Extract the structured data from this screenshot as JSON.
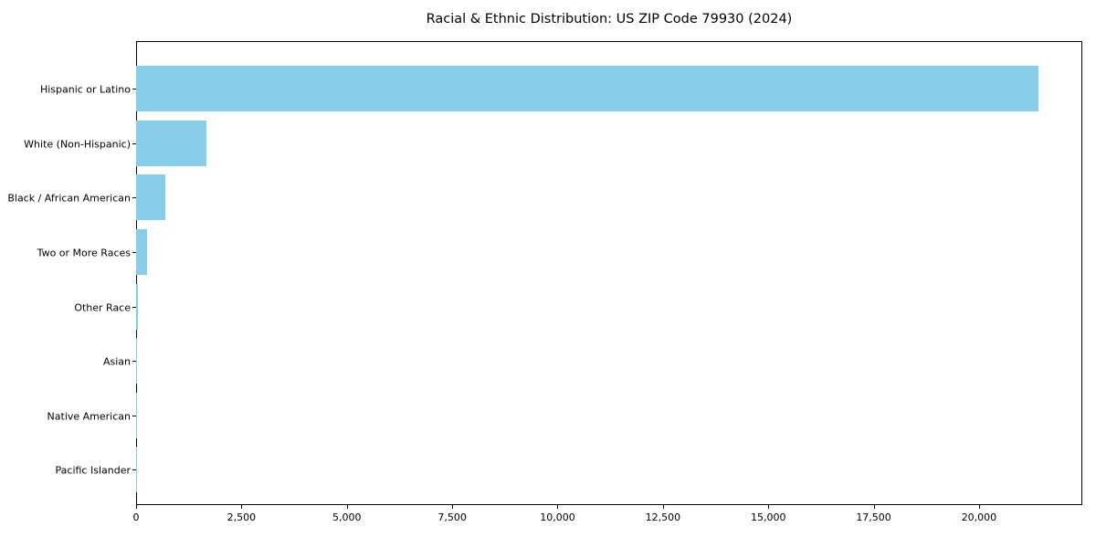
{
  "chart_data": {
    "type": "bar",
    "orientation": "horizontal",
    "title": "Racial & Ethnic Distribution: US ZIP Code 79930 (2024)",
    "categories": [
      "Hispanic or Latino",
      "White (Non-Hispanic)",
      "Black / African American",
      "Two or More Races",
      "Other Race",
      "Asian",
      "Native American",
      "Pacific Islander"
    ],
    "values": [
      21400,
      1670,
      690,
      250,
      50,
      20,
      10,
      4
    ],
    "xlabel": "",
    "ylabel": "",
    "xlim": [
      0,
      22450
    ],
    "xticks": [
      0,
      2500,
      5000,
      7500,
      10000,
      12500,
      15000,
      17500,
      20000
    ],
    "xtick_labels": [
      "0",
      "2,500",
      "5,000",
      "7,500",
      "10,000",
      "12,500",
      "15,000",
      "17,500",
      "20,000"
    ],
    "grid": "off",
    "legend": "none",
    "bar_color": "#87CEEB",
    "background_color": "#ffffff",
    "axis_color": "#000000"
  }
}
